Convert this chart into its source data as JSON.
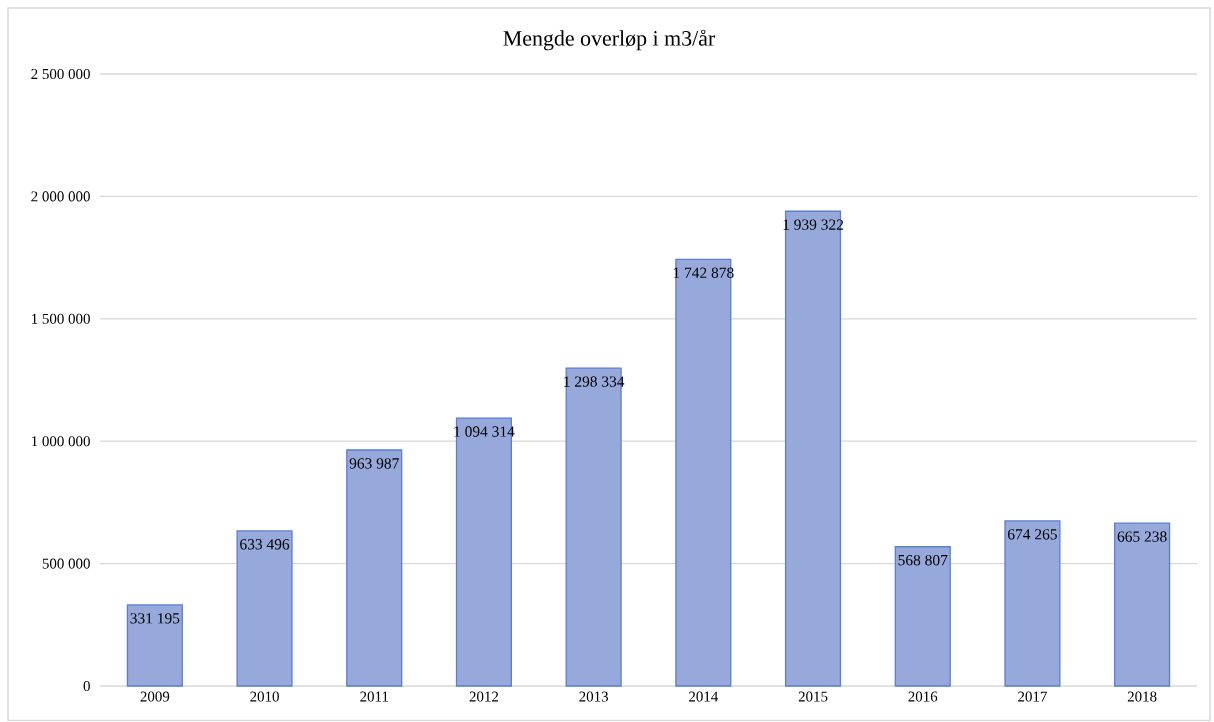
{
  "chart_data": {
    "type": "bar",
    "title": "Mengde overløp i m3/år",
    "categories": [
      "2009",
      "2010",
      "2011",
      "2012",
      "2013",
      "2014",
      "2015",
      "2016",
      "2017",
      "2018"
    ],
    "values": [
      331195,
      633496,
      963987,
      1094314,
      1298334,
      1742878,
      1939322,
      568807,
      674265,
      665238
    ],
    "value_labels": [
      "331 195",
      "633 496",
      "963 987",
      "1 094 314",
      "1 298 334",
      "1 742 878",
      "1 939 322",
      "568 807",
      "674 265",
      "665 238"
    ],
    "color": "#97a9da",
    "ylim": [
      0,
      2500000
    ],
    "yticks": [
      0,
      {
        "value": 500000,
        "label": "500 000"
      },
      {
        "value": 1000000,
        "label": "1 000 000"
      },
      {
        "value": 1500000,
        "label": "1 500 000"
      },
      {
        "value": 2000000,
        "label": "2 000 000"
      },
      {
        "value": 2500000,
        "label": "2 500 000"
      }
    ],
    "grid": "y"
  }
}
